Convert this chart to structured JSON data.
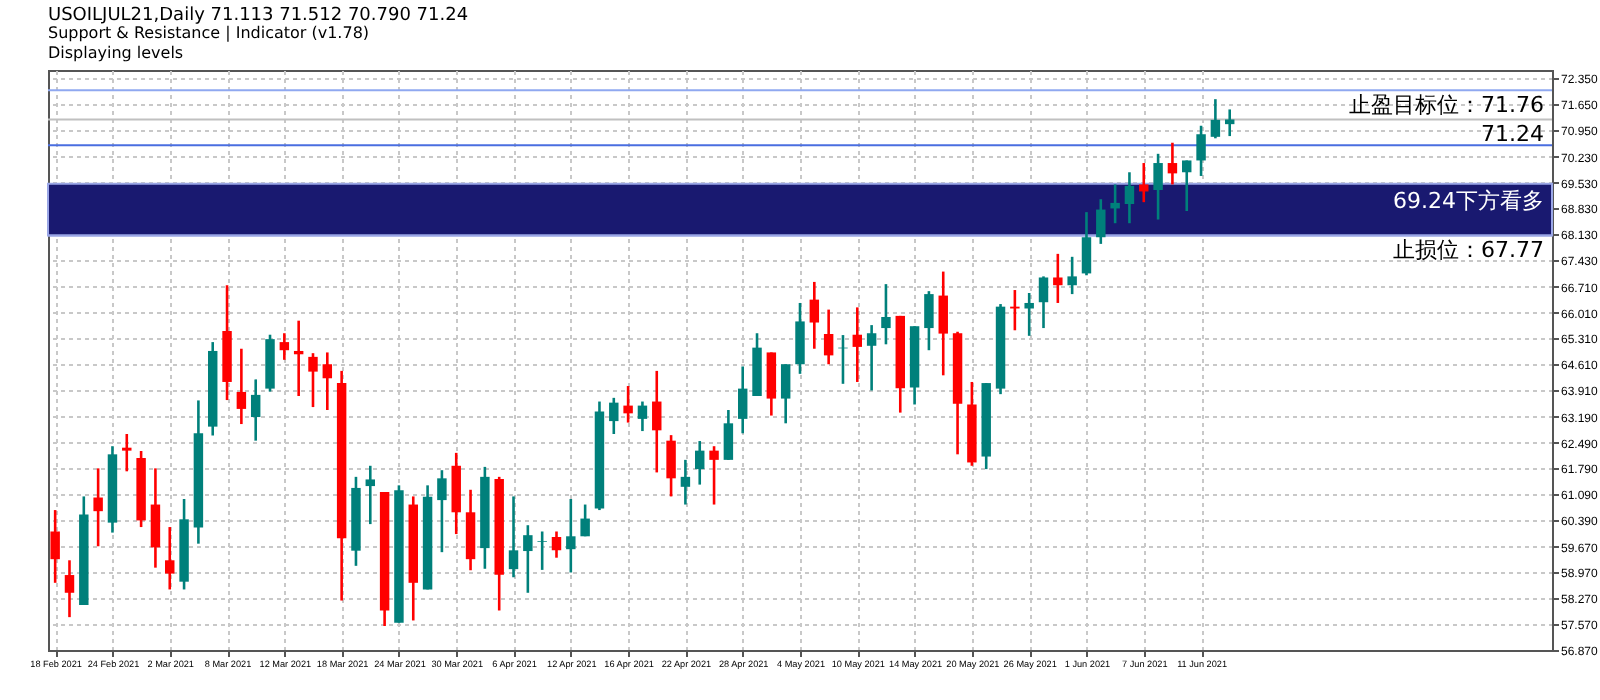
{
  "chart_data": {
    "type": "candlestick",
    "title": "USOILJUL21,Daily  71.113 71.512 70.790 71.24",
    "subtitle": "Support & Resistance | Indicator (v1.78)",
    "annotations": [
      "Displaying levels"
    ],
    "categories": [
      "18 Feb 2021",
      null,
      null,
      null,
      "24 Feb 2021",
      null,
      null,
      null,
      "2 Mar 2021",
      null,
      null,
      null,
      "8 Mar 2021",
      null,
      null,
      null,
      "12 Mar 2021",
      null,
      null,
      null,
      "18 Mar 2021",
      null,
      null,
      null,
      "24 Mar 2021",
      null,
      null,
      null,
      "30 Mar 2021",
      null,
      null,
      null,
      "6 Apr 2021",
      null,
      null,
      null,
      "12 Apr 2021",
      null,
      null,
      null,
      "16 Apr 2021",
      null,
      null,
      null,
      "22 Apr 2021",
      null,
      null,
      null,
      "28 Apr 2021",
      null,
      null,
      null,
      "4 May 2021",
      null,
      null,
      null,
      "10 May 2021",
      null,
      null,
      null,
      "14 May 2021",
      null,
      null,
      null,
      "20 May 2021",
      null,
      null,
      null,
      "26 May 2021",
      null,
      null,
      null,
      "1 Jun 2021",
      null,
      null,
      null,
      "7 Jun 2021",
      null,
      null,
      null,
      "11 Jun 2021",
      null,
      null,
      null,
      null,
      null,
      null,
      null,
      null,
      null,
      null,
      null,
      null,
      null,
      null,
      null,
      null,
      null,
      null,
      null,
      null,
      null,
      null,
      null,
      null
    ],
    "ohlc": [
      [
        60.08,
        60.66,
        58.69,
        59.33
      ],
      [
        58.9,
        59.3,
        57.76,
        58.42
      ],
      [
        58.09,
        61.03,
        58.09,
        60.54
      ],
      [
        61.0,
        61.79,
        59.68,
        60.63
      ],
      [
        60.32,
        62.39,
        60.05,
        62.17
      ],
      [
        62.35,
        62.72,
        61.71,
        62.27
      ],
      [
        62.07,
        62.26,
        60.2,
        60.38
      ],
      [
        60.81,
        61.79,
        59.1,
        59.65
      ],
      [
        59.3,
        60.2,
        58.51,
        58.94
      ],
      [
        58.72,
        60.96,
        58.51,
        60.41
      ],
      [
        60.19,
        63.63,
        59.75,
        62.74
      ],
      [
        62.92,
        65.21,
        62.68,
        64.97
      ],
      [
        65.51,
        66.75,
        63.64,
        64.13
      ],
      [
        63.86,
        65.03,
        62.99,
        63.4
      ],
      [
        63.18,
        64.2,
        62.54,
        63.78
      ],
      [
        63.95,
        65.41,
        63.87,
        65.29
      ],
      [
        65.21,
        65.45,
        64.73,
        64.99
      ],
      [
        64.97,
        65.79,
        63.75,
        64.88
      ],
      [
        64.81,
        64.91,
        63.45,
        64.41
      ],
      [
        64.61,
        64.93,
        63.37,
        64.23
      ],
      [
        64.1,
        64.43,
        58.21,
        59.9
      ],
      [
        59.56,
        61.56,
        59.15,
        61.26
      ],
      [
        61.31,
        61.86,
        60.28,
        61.49
      ],
      [
        61.15,
        61.15,
        57.52,
        57.94
      ],
      [
        57.61,
        61.33,
        57.61,
        61.2
      ],
      [
        60.81,
        61.03,
        57.67,
        58.69
      ],
      [
        58.51,
        61.33,
        58.51,
        61.02
      ],
      [
        60.93,
        61.74,
        59.52,
        61.52
      ],
      [
        61.86,
        62.21,
        60.01,
        60.6
      ],
      [
        60.6,
        61.21,
        59.03,
        59.33
      ],
      [
        59.63,
        61.83,
        59.07,
        61.56
      ],
      [
        61.5,
        61.56,
        57.94,
        58.91
      ],
      [
        59.06,
        61.03,
        58.84,
        59.57
      ],
      [
        59.55,
        60.25,
        58.42,
        59.98
      ],
      [
        59.8,
        60.08,
        59.04,
        59.82
      ],
      [
        59.93,
        60.08,
        59.37,
        59.57
      ],
      [
        59.6,
        60.96,
        58.97,
        59.95
      ],
      [
        59.95,
        60.81,
        59.95,
        60.43
      ],
      [
        60.7,
        63.6,
        60.66,
        63.33
      ],
      [
        63.07,
        63.7,
        62.72,
        63.57
      ],
      [
        63.49,
        64.02,
        63.03,
        63.28
      ],
      [
        63.13,
        63.6,
        62.8,
        63.49
      ],
      [
        63.6,
        64.43,
        61.68,
        62.82
      ],
      [
        62.54,
        62.69,
        61.03,
        61.52
      ],
      [
        61.29,
        62.02,
        60.81,
        61.56
      ],
      [
        61.77,
        62.53,
        61.35,
        62.27
      ],
      [
        62.27,
        62.39,
        60.81,
        62.02
      ],
      [
        62.02,
        63.37,
        62.02,
        63.01
      ],
      [
        63.13,
        64.55,
        62.74,
        63.95
      ],
      [
        63.75,
        65.45,
        63.75,
        65.06
      ],
      [
        64.93,
        64.93,
        63.22,
        63.68
      ],
      [
        63.68,
        64.61,
        63.01,
        64.61
      ],
      [
        64.61,
        66.27,
        64.35,
        65.77
      ],
      [
        66.36,
        66.84,
        65.03,
        65.74
      ],
      [
        65.43,
        66.09,
        64.61,
        64.85
      ],
      [
        65.04,
        65.4,
        64.08,
        65.06
      ],
      [
        65.41,
        66.15,
        64.13,
        65.08
      ],
      [
        65.11,
        65.67,
        63.9,
        65.45
      ],
      [
        65.59,
        66.78,
        65.15,
        65.89
      ],
      [
        65.92,
        65.92,
        63.3,
        63.96
      ],
      [
        63.98,
        65.64,
        63.52,
        65.64
      ],
      [
        65.59,
        66.59,
        64.99,
        66.51
      ],
      [
        66.47,
        67.12,
        64.31,
        65.44
      ],
      [
        65.45,
        65.49,
        62.17,
        63.54
      ],
      [
        63.52,
        64.13,
        61.86,
        61.95
      ],
      [
        62.11,
        64.1,
        61.77,
        64.1
      ],
      [
        63.95,
        66.24,
        63.8,
        66.17
      ],
      [
        66.17,
        66.62,
        65.53,
        66.12
      ],
      [
        66.12,
        66.54,
        65.38,
        66.27
      ],
      [
        66.29,
        66.99,
        65.59,
        66.96
      ],
      [
        66.96,
        67.6,
        66.27,
        66.75
      ],
      [
        66.75,
        67.52,
        66.51,
        66.99
      ],
      [
        67.07,
        68.73,
        67.02,
        68.05
      ],
      [
        68.05,
        69.08,
        67.87,
        68.8
      ],
      [
        68.83,
        69.48,
        68.43,
        68.98
      ],
      [
        68.95,
        69.81,
        68.43,
        69.44
      ],
      [
        69.48,
        70.06,
        69.0,
        69.29
      ],
      [
        69.33,
        70.31,
        68.53,
        70.06
      ],
      [
        70.06,
        70.61,
        69.48,
        69.78
      ],
      [
        69.81,
        70.13,
        68.76,
        70.13
      ],
      [
        70.13,
        71.07,
        69.71,
        70.84
      ],
      [
        70.77,
        71.79,
        70.73,
        71.23
      ],
      [
        71.113,
        71.512,
        70.79,
        71.24
      ],
      null,
      null,
      null,
      null,
      null,
      null,
      null,
      null,
      null,
      null,
      null,
      null,
      null,
      null,
      null,
      null,
      null,
      null,
      null,
      null,
      null,
      null
    ],
    "colors": [
      "#ff0000",
      "#ff0000",
      "#00807b",
      "#ff0000",
      "#00807b",
      "#ff0000",
      "#ff0000",
      "#ff0000",
      "#ff0000",
      "#00807b",
      "#00807b",
      "#00807b",
      "#ff0000",
      "#ff0000",
      "#00807b",
      "#00807b",
      "#ff0000",
      "#ff0000",
      "#ff0000",
      "#ff0000",
      "#ff0000",
      "#00807b",
      "#00807b",
      "#ff0000",
      "#00807b",
      "#ff0000",
      "#00807b",
      "#00807b",
      "#ff0000",
      "#ff0000",
      "#00807b",
      "#ff0000",
      "#00807b",
      "#00807b",
      "#00807b",
      "#ff0000",
      "#00807b",
      "#00807b",
      "#00807b",
      "#00807b",
      "#ff0000",
      "#00807b",
      "#ff0000",
      "#ff0000",
      "#00807b",
      "#00807b",
      "#ff0000",
      "#00807b",
      "#00807b",
      "#00807b",
      "#ff0000",
      "#00807b",
      "#00807b",
      "#ff0000",
      "#ff0000",
      "#00807b",
      "#ff0000",
      "#00807b",
      "#00807b",
      "#ff0000",
      "#00807b",
      "#00807b",
      "#ff0000",
      "#ff0000",
      "#ff0000",
      "#00807b",
      "#00807b",
      "#ff0000",
      "#00807b",
      "#00807b",
      "#ff0000",
      "#00807b",
      "#00807b",
      "#00807b",
      "#00807b",
      "#00807b",
      "#ff0000",
      "#00807b",
      "#ff0000",
      "#00807b",
      "#00807b",
      "#00807b",
      "#00807b",
      null,
      null,
      null,
      null,
      null,
      null,
      null,
      null,
      null,
      null,
      null,
      null,
      null,
      null,
      null,
      null,
      null,
      null,
      null,
      null,
      null,
      null
    ],
    "ylim": [
      56.87,
      72.58
    ],
    "yticks": [
      {
        "value": 72.35,
        "label": "72.350"
      },
      {
        "value": 71.65,
        "label": "71.650"
      },
      {
        "value": 70.95,
        "label": "70.950"
      },
      {
        "value": 70.23,
        "label": "70.230"
      },
      {
        "value": 69.53,
        "label": "69.530"
      },
      {
        "value": 68.83,
        "label": "68.830"
      },
      {
        "value": 68.13,
        "label": "68.130"
      },
      {
        "value": 67.43,
        "label": "67.430"
      },
      {
        "value": 66.71,
        "label": "66.710"
      },
      {
        "value": 66.01,
        "label": "66.010"
      },
      {
        "value": 65.31,
        "label": "65.310"
      },
      {
        "value": 64.61,
        "label": "64.610"
      },
      {
        "value": 63.91,
        "label": "63.910"
      },
      {
        "value": 63.19,
        "label": "63.190"
      },
      {
        "value": 62.49,
        "label": "62.490"
      },
      {
        "value": 61.79,
        "label": "61.790"
      },
      {
        "value": 61.09,
        "label": "61.090"
      },
      {
        "value": 60.39,
        "label": "60.390"
      },
      {
        "value": 59.67,
        "label": "59.670"
      },
      {
        "value": 58.97,
        "label": "58.970"
      },
      {
        "value": 58.27,
        "label": "58.270"
      },
      {
        "value": 57.57,
        "label": "57.570"
      },
      {
        "value": 56.87,
        "label": "56.870"
      }
    ],
    "ref_lines": [
      {
        "axis": "y",
        "value": 72.03,
        "label": "止盈目标位：71.76",
        "color": "#8fa8f0"
      },
      {
        "axis": "y",
        "value": 71.24,
        "label": "71.24",
        "color": "#c0c0c0"
      },
      {
        "axis": "y",
        "value": 70.54,
        "color": "#4a6ee0"
      },
      {
        "axis": "y",
        "value": 68.1,
        "label": "止损位：67.77",
        "color": "#9aa6e6"
      }
    ],
    "bands": [
      {
        "axis": "y",
        "from": 68.1,
        "to": 69.5,
        "label": "69.24下方看多",
        "color": "#191970"
      }
    ],
    "grid": true
  }
}
